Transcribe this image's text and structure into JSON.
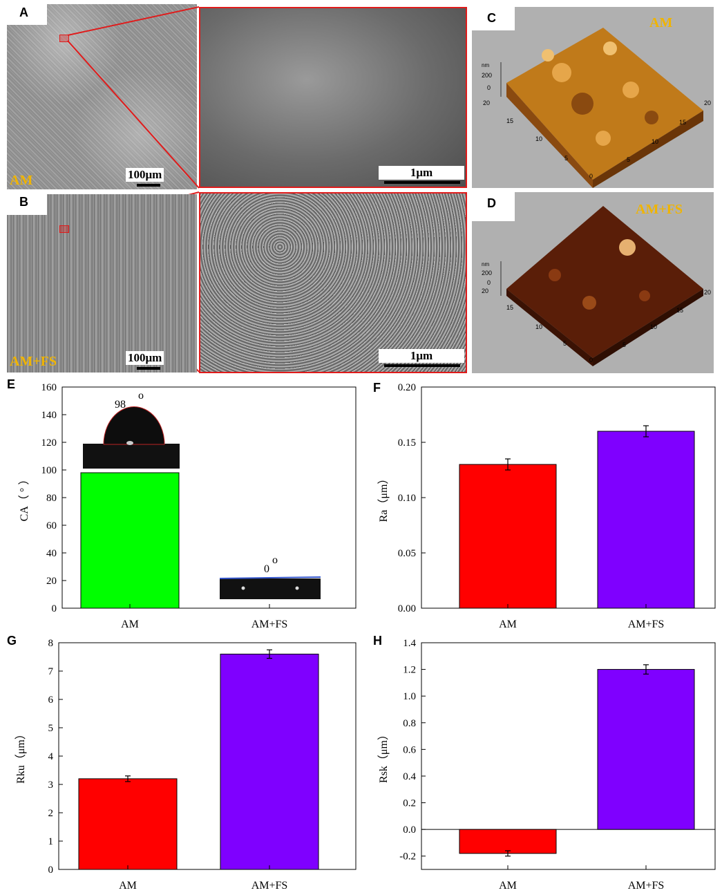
{
  "panel_letters": [
    "A",
    "B",
    "C",
    "D",
    "E",
    "F",
    "G",
    "H"
  ],
  "images": {
    "A": {
      "label": "AM",
      "scale": "100μm",
      "zoom_scale": "1μm"
    },
    "B": {
      "label": "AM+FS",
      "scale": "100μm",
      "zoom_scale": "1μm"
    },
    "C": {
      "label": "AM",
      "z_unit": "nm",
      "z_ticks": [
        "200",
        "0"
      ],
      "xy_ticks": [
        "20",
        "15",
        "10",
        "5",
        "0"
      ]
    },
    "D": {
      "label": "AM+FS",
      "z_unit": "nm",
      "z_ticks": [
        "200",
        "0"
      ],
      "xy_ticks": [
        "20",
        "15",
        "10",
        "5",
        "0"
      ]
    }
  },
  "colors": {
    "green": "#00ff00",
    "red": "#ff0000",
    "purple": "#7f00ff",
    "afm_gold": "#c07a1a",
    "afm_dark": "#5a1e08",
    "label_gold": "#f0b400"
  },
  "chart_data": [
    {
      "panel": "E",
      "type": "bar",
      "categories": [
        "AM",
        "AM+FS"
      ],
      "values": [
        98,
        0
      ],
      "annotations": [
        "98",
        "0"
      ],
      "annotation_suffix": "o",
      "ylabel": "CA（ ° ）",
      "ylim": [
        0,
        160
      ],
      "yticks": [
        0,
        20,
        40,
        60,
        80,
        100,
        120,
        140,
        160
      ],
      "colors": [
        "#00ff00",
        "#00ff00"
      ]
    },
    {
      "panel": "F",
      "type": "bar",
      "categories": [
        "AM",
        "AM+FS"
      ],
      "values": [
        0.13,
        0.16
      ],
      "errors": [
        0.005,
        0.005
      ],
      "ylabel": "Ra（μm）",
      "ylim": [
        0,
        0.2
      ],
      "yticks": [
        "0.00",
        "0.05",
        "0.10",
        "0.15",
        "0.20"
      ],
      "colors": [
        "#ff0000",
        "#7f00ff"
      ]
    },
    {
      "panel": "G",
      "type": "bar",
      "categories": [
        "AM",
        "AM+FS"
      ],
      "values": [
        3.2,
        7.6
      ],
      "errors": [
        0.1,
        0.15
      ],
      "ylabel": "Rku（μm）",
      "ylim": [
        0,
        8
      ],
      "yticks": [
        "0",
        "1",
        "2",
        "3",
        "4",
        "5",
        "6",
        "7",
        "8"
      ],
      "colors": [
        "#ff0000",
        "#7f00ff"
      ]
    },
    {
      "panel": "H",
      "type": "bar",
      "categories": [
        "AM",
        "AM+FS"
      ],
      "values": [
        -0.18,
        1.2
      ],
      "errors": [
        0.02,
        0.035
      ],
      "ylabel": "Rsk（μm）",
      "ylim": [
        -0.3,
        1.4
      ],
      "yticks": [
        "-0.2",
        "0.0",
        "0.2",
        "0.4",
        "0.6",
        "0.8",
        "1.0",
        "1.2",
        "1.4"
      ],
      "colors": [
        "#ff0000",
        "#7f00ff"
      ]
    }
  ]
}
